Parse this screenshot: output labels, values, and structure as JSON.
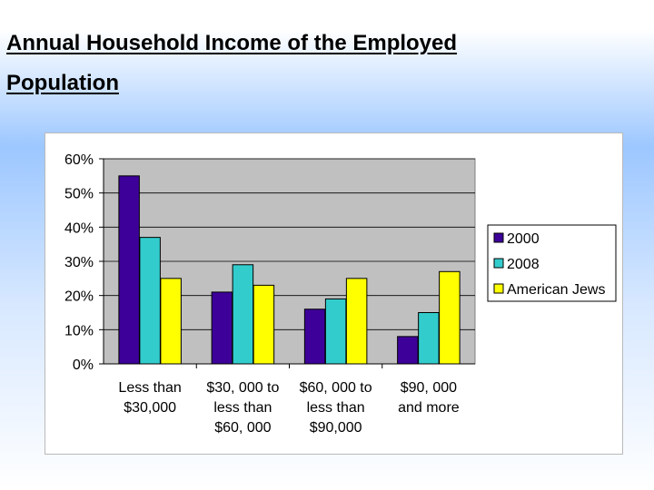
{
  "slide": {
    "title_line1": "Annual Household Income of the Employed",
    "title_line2": "Population"
  },
  "colors": {
    "plot_bg": "#c0c0c0",
    "grid": "#000000"
  },
  "chart_data": {
    "type": "bar",
    "title": "",
    "xlabel": "",
    "ylabel": "",
    "ylim": [
      0,
      60
    ],
    "yticks": [
      "0%",
      "10%",
      "20%",
      "30%",
      "40%",
      "50%",
      "60%"
    ],
    "grid": true,
    "legend": "right",
    "categories": [
      [
        "Less than",
        "$30,000"
      ],
      [
        "$30, 000 to",
        "less than",
        "$60, 000"
      ],
      [
        "$60, 000 to",
        "less than",
        "$90,000"
      ],
      [
        "$90, 000",
        "and more"
      ]
    ],
    "series": [
      {
        "name": "2000",
        "color": "#3d0099",
        "values": [
          55,
          21,
          16,
          8
        ]
      },
      {
        "name": "2008",
        "color": "#33cccc",
        "values": [
          37,
          29,
          19,
          15
        ]
      },
      {
        "name": "American Jews",
        "color": "#ffff00",
        "values": [
          25,
          23,
          25,
          27
        ]
      }
    ]
  }
}
